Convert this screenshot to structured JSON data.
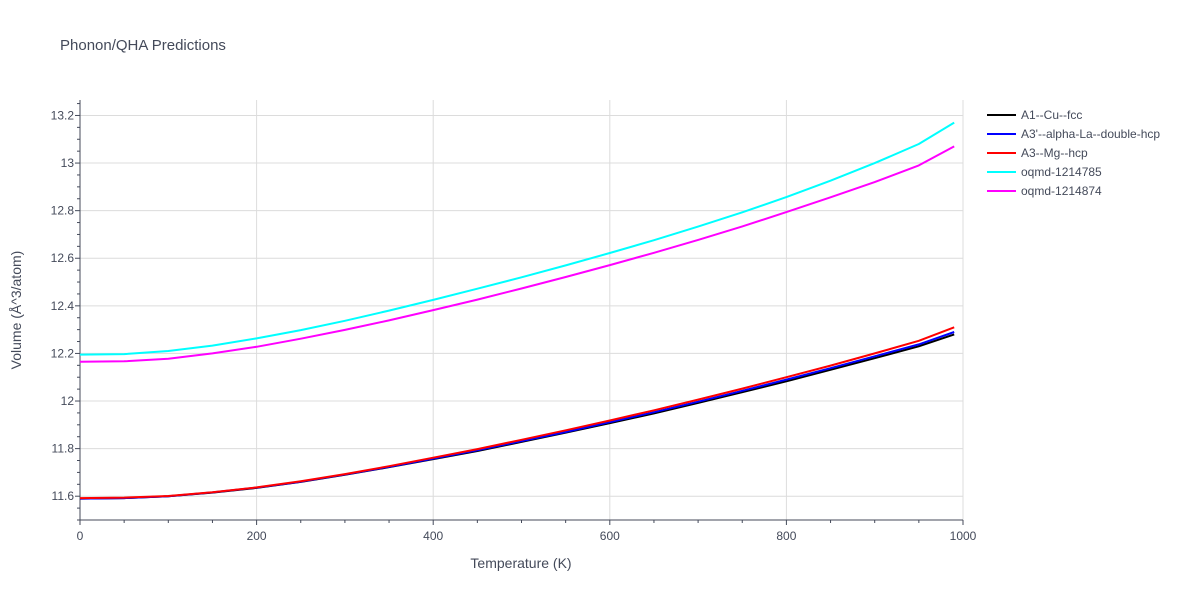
{
  "chart_data": {
    "type": "line",
    "title": "Phonon/QHA Predictions",
    "xlabel": "Temperature (K)",
    "ylabel": "Volume (Å^3/atom)",
    "xlim": [
      0,
      1000
    ],
    "ylim": [
      11.5,
      13.265
    ],
    "xticks": [
      0,
      200,
      400,
      600,
      800,
      1000
    ],
    "xtick_labels": [
      "0",
      "200",
      "400",
      "600",
      "800",
      "1000"
    ],
    "yticks": [
      11.6,
      11.8,
      12.0,
      12.2,
      12.4,
      12.6,
      12.8,
      13.0,
      13.2
    ],
    "ytick_labels": [
      "11.6",
      "11.8",
      "12",
      "12.2",
      "12.4",
      "12.6",
      "12.8",
      "13",
      "13.2"
    ],
    "grid": true,
    "legend_position": "top-right outside",
    "x": [
      0,
      50,
      100,
      150,
      200,
      250,
      300,
      350,
      400,
      450,
      500,
      550,
      600,
      650,
      700,
      750,
      800,
      850,
      900,
      950,
      990
    ],
    "series": [
      {
        "name": "A1--Cu--fcc",
        "color": "#000000",
        "values": [
          11.59,
          11.592,
          11.6,
          11.615,
          11.635,
          11.66,
          11.69,
          11.722,
          11.756,
          11.79,
          11.828,
          11.867,
          11.907,
          11.948,
          11.992,
          12.037,
          12.083,
          12.131,
          12.18,
          12.23,
          12.28
        ]
      },
      {
        "name": "A3'--alpha-La--double-hcp",
        "color": "#0000ff",
        "values": [
          11.59,
          11.592,
          11.6,
          11.616,
          11.636,
          11.661,
          11.691,
          11.723,
          11.758,
          11.793,
          11.831,
          11.87,
          11.911,
          11.953,
          11.997,
          12.043,
          12.09,
          12.138,
          12.188,
          12.238,
          12.29
        ]
      },
      {
        "name": "A3--Mg--hcp",
        "color": "#ff0000",
        "values": [
          11.592,
          11.594,
          11.601,
          11.617,
          11.637,
          11.663,
          11.693,
          11.726,
          11.762,
          11.798,
          11.837,
          11.877,
          11.918,
          11.961,
          12.006,
          12.052,
          12.1,
          12.149,
          12.2,
          12.253,
          12.31
        ]
      },
      {
        "name": "oqmd-1214785",
        "color": "#00ffff",
        "values": [
          12.195,
          12.197,
          12.21,
          12.233,
          12.263,
          12.298,
          12.337,
          12.38,
          12.425,
          12.472,
          12.52,
          12.57,
          12.622,
          12.676,
          12.733,
          12.793,
          12.857,
          12.926,
          13.0,
          13.08,
          13.17
        ]
      },
      {
        "name": "oqmd-1214874",
        "color": "#ff00ff",
        "values": [
          12.165,
          12.167,
          12.178,
          12.2,
          12.228,
          12.262,
          12.299,
          12.339,
          12.382,
          12.426,
          12.473,
          12.521,
          12.571,
          12.623,
          12.677,
          12.734,
          12.794,
          12.856,
          12.92,
          12.99,
          13.07
        ]
      }
    ]
  }
}
